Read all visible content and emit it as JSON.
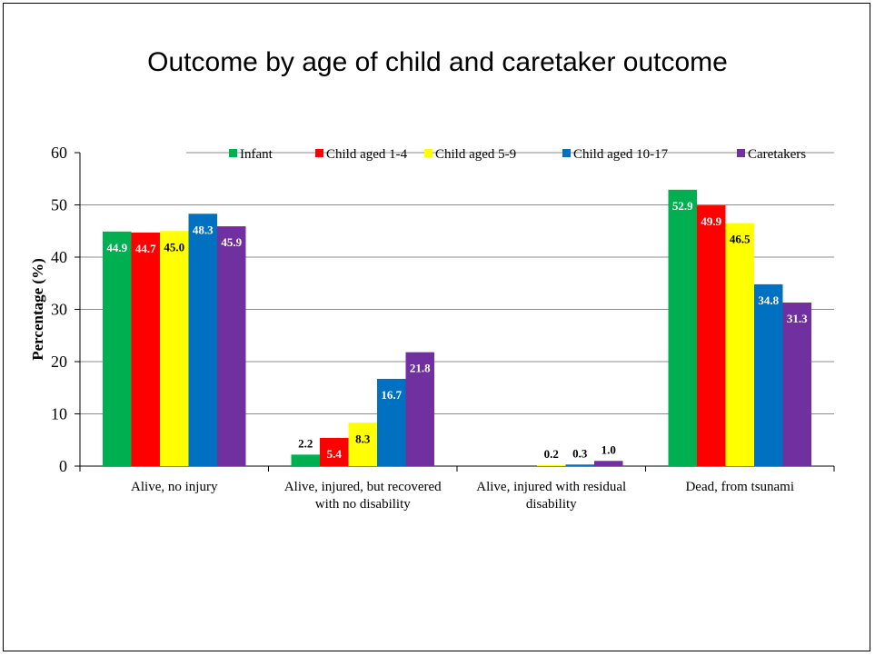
{
  "chart_data": {
    "type": "bar",
    "title": "Outcome by age of child and caretaker outcome",
    "xlabel": "",
    "ylabel": "Percentage (%)",
    "ylim": [
      0,
      60
    ],
    "yticks": [
      "0",
      "10",
      "20",
      "30",
      "40",
      "50",
      "60"
    ],
    "grid": true,
    "legend_position": "top",
    "categories": [
      [
        "Alive, no injury"
      ],
      [
        "Alive, injured, but recovered",
        "with no disability"
      ],
      [
        "Alive, injured with residual",
        "disability"
      ],
      [
        "Dead, from tsunami"
      ]
    ],
    "series": [
      {
        "name": "Infant",
        "color": "#00b050",
        "values": [
          44.9,
          2.2,
          0,
          52.9
        ],
        "labels": [
          "44.9",
          "2.2",
          "",
          "52.9"
        ]
      },
      {
        "name": "Child aged 1-4",
        "color": "#ff0000",
        "values": [
          44.7,
          5.4,
          0,
          49.9
        ],
        "labels": [
          "44.7",
          "5.4",
          "",
          "49.9"
        ]
      },
      {
        "name": "Child aged 5-9",
        "color": "#ffff00",
        "values": [
          45.0,
          8.3,
          0.2,
          46.5
        ],
        "labels": [
          "45.0",
          "8.3",
          "0.2",
          "46.5"
        ]
      },
      {
        "name": "Child aged 10-17",
        "color": "#0070c0",
        "values": [
          48.3,
          16.7,
          0.3,
          34.8
        ],
        "labels": [
          "48.3",
          "16.7",
          "0.3",
          "34.8"
        ]
      },
      {
        "name": "Caretakers",
        "color": "#7030a0",
        "values": [
          45.9,
          21.8,
          1.0,
          31.3
        ],
        "labels": [
          "45.9",
          "21.8",
          "1.0",
          "31.3"
        ]
      }
    ]
  }
}
